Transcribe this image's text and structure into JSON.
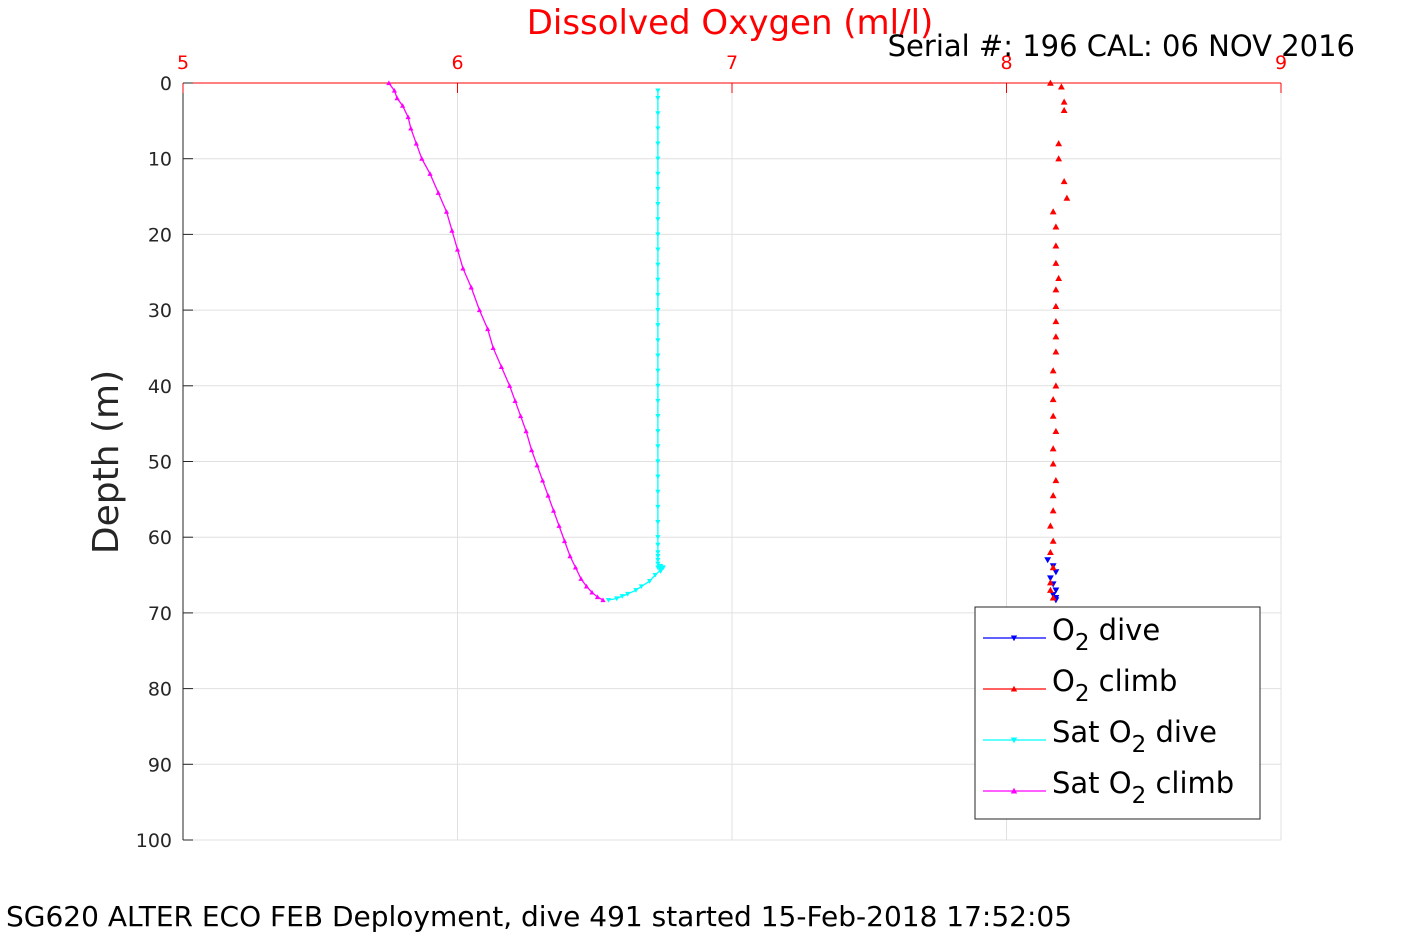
{
  "chart_data": {
    "type": "scatter",
    "title": "Dissolved Oxygen (ml/l)",
    "subtitle": "Serial #: 196  CAL: 06 NOV 2016",
    "footer": "SG620 ALTER ECO FEB Deployment, dive 491 started 15-Feb-2018 17:52:05",
    "ylabel": "Depth (m)",
    "xlim": [
      5,
      9
    ],
    "ylim": [
      0,
      100
    ],
    "y_reversed": true,
    "x_axis_location": "top",
    "xticks": [
      "5",
      "6",
      "7",
      "8",
      "9"
    ],
    "yticks": [
      "0",
      "10",
      "20",
      "30",
      "40",
      "50",
      "60",
      "70",
      "80",
      "90",
      "100"
    ],
    "grid": true,
    "legend_position": "bottom-right",
    "colors": {
      "x_axis": "#ff0000",
      "y_axis": "#262626",
      "grid": "#e0e0e0"
    },
    "series": [
      {
        "key": "o2_dive",
        "name_main": "O",
        "name_sub": "2",
        "name_rest": " dive",
        "color": "#0000ff",
        "marker": "triangle-down",
        "line": false,
        "x": [
          8.15,
          8.17,
          8.18,
          8.16,
          8.17,
          8.18,
          8.17,
          8.18,
          8.18
        ],
        "y": [
          63.0,
          63.8,
          64.6,
          65.4,
          66.2,
          67.0,
          67.6,
          68.0,
          68.3
        ]
      },
      {
        "key": "o2_climb",
        "name_main": "O",
        "name_sub": "2",
        "name_rest": " climb",
        "color": "#ff0000",
        "marker": "triangle-up",
        "line": false,
        "x": [
          8.16,
          8.2,
          8.21,
          8.21,
          8.19,
          8.19,
          8.21,
          8.22,
          8.17,
          8.18,
          8.18,
          8.18,
          8.19,
          8.18,
          8.18,
          8.18,
          8.18,
          8.18,
          8.17,
          8.18,
          8.17,
          8.17,
          8.18,
          8.17,
          8.17,
          8.18,
          8.17,
          8.17,
          8.16,
          8.17,
          8.16,
          8.17,
          8.16,
          8.16,
          8.17
        ],
        "y": [
          0.0,
          0.5,
          2.5,
          3.6,
          8.0,
          10.0,
          13.0,
          15.2,
          17.0,
          19.0,
          21.5,
          23.8,
          25.8,
          27.3,
          29.5,
          31.5,
          33.5,
          35.5,
          38.0,
          40.0,
          41.8,
          44.0,
          46.0,
          48.3,
          50.3,
          52.5,
          54.5,
          56.5,
          58.5,
          60.5,
          62.0,
          64.0,
          66.0,
          67.0,
          68.0
        ]
      },
      {
        "key": "sat_dive",
        "name_main": "Sat O",
        "name_sub": "2",
        "name_rest": " dive",
        "color": "#00ffff",
        "marker": "triangle-down",
        "line": true,
        "x": [
          6.73,
          6.73,
          6.73,
          6.73,
          6.73,
          6.73,
          6.73,
          6.73,
          6.73,
          6.73,
          6.73,
          6.73,
          6.73,
          6.73,
          6.73,
          6.73,
          6.73,
          6.73,
          6.73,
          6.73,
          6.73,
          6.73,
          6.73,
          6.73,
          6.73,
          6.73,
          6.73,
          6.73,
          6.73,
          6.73,
          6.73,
          6.73,
          6.73,
          6.73,
          6.73,
          6.73,
          6.74,
          6.73,
          6.74,
          6.74,
          6.75,
          6.72,
          6.7,
          6.67,
          6.65,
          6.62,
          6.6,
          6.58,
          6.55
        ],
        "y": [
          1,
          2,
          4,
          6,
          8,
          10,
          12,
          14,
          16,
          18,
          20,
          22,
          24,
          26,
          28,
          30,
          32,
          34,
          36,
          38,
          40,
          42,
          44,
          46,
          48,
          50,
          52,
          54,
          56,
          58,
          60,
          61,
          62,
          62.5,
          63,
          63.5,
          63.8,
          64.0,
          64.2,
          64.5,
          64.0,
          65.0,
          65.8,
          66.5,
          67.0,
          67.5,
          67.8,
          68.1,
          68.3
        ]
      },
      {
        "key": "sat_climb",
        "name_main": "Sat O",
        "name_sub": "2",
        "name_rest": " climb",
        "color": "#ff00ff",
        "marker": "triangle-up",
        "line": true,
        "x": [
          5.75,
          5.77,
          5.78,
          5.8,
          5.82,
          5.83,
          5.85,
          5.87,
          5.9,
          5.93,
          5.96,
          5.98,
          6.0,
          6.02,
          6.05,
          6.08,
          6.11,
          6.13,
          6.16,
          6.19,
          6.21,
          6.23,
          6.25,
          6.27,
          6.29,
          6.31,
          6.33,
          6.35,
          6.37,
          6.39,
          6.41,
          6.43,
          6.45,
          6.47,
          6.49,
          6.51,
          6.53
        ],
        "y": [
          0,
          1,
          2,
          3,
          4.5,
          6,
          8,
          10,
          12,
          14.5,
          17,
          19.5,
          22,
          24.5,
          27,
          30,
          32.5,
          35,
          37.5,
          40,
          42,
          44,
          46,
          48.5,
          50.5,
          52.5,
          54.5,
          56.5,
          58.5,
          60.5,
          62.5,
          64,
          65.5,
          66.5,
          67.3,
          67.9,
          68.3
        ]
      }
    ]
  }
}
